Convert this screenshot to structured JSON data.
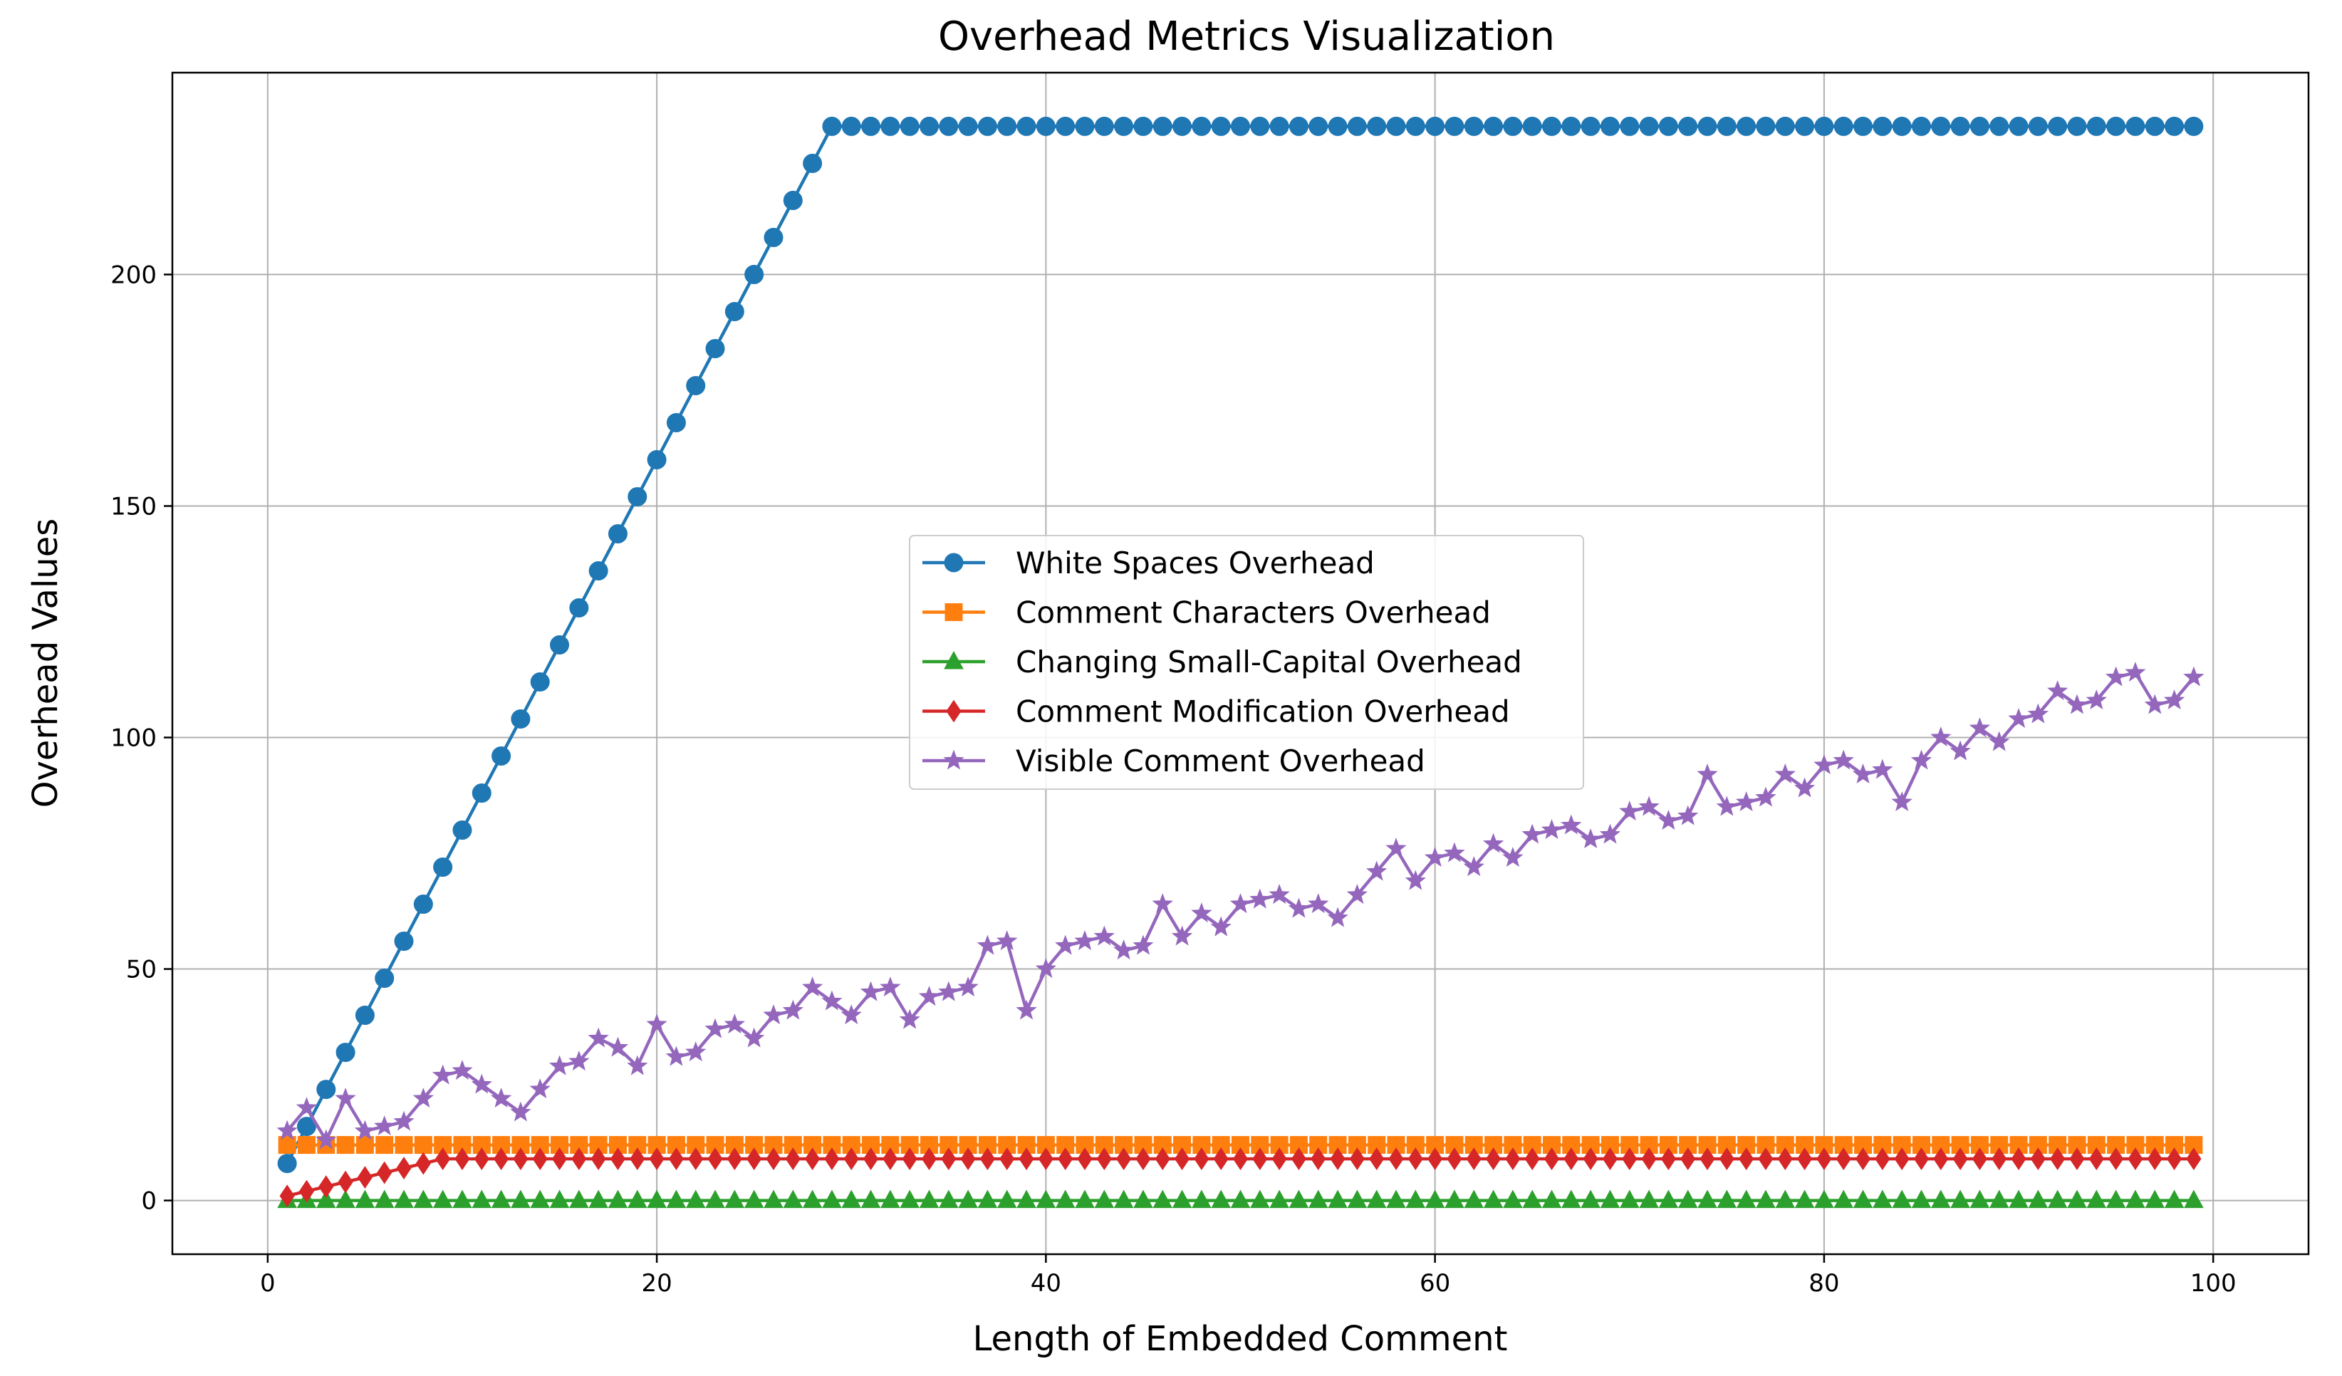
{
  "chart_data": {
    "type": "line",
    "title": "Overhead Metrics Visualization",
    "xlabel": "Length of Embedded Comment",
    "ylabel": "Overhead Values",
    "xlim": [
      -4.9,
      104.9
    ],
    "ylim": [
      -11.6,
      243.6
    ],
    "xticks": [
      0,
      20,
      40,
      60,
      80,
      100
    ],
    "yticks": [
      0,
      50,
      100,
      150,
      200
    ],
    "grid": true,
    "legend_position": "center",
    "x": [
      1,
      2,
      3,
      4,
      5,
      6,
      7,
      8,
      9,
      10,
      11,
      12,
      13,
      14,
      15,
      16,
      17,
      18,
      19,
      20,
      21,
      22,
      23,
      24,
      25,
      26,
      27,
      28,
      29,
      30,
      31,
      32,
      33,
      34,
      35,
      36,
      37,
      38,
      39,
      40,
      41,
      42,
      43,
      44,
      45,
      46,
      47,
      48,
      49,
      50,
      51,
      52,
      53,
      54,
      55,
      56,
      57,
      58,
      59,
      60,
      61,
      62,
      63,
      64,
      65,
      66,
      67,
      68,
      69,
      70,
      71,
      72,
      73,
      74,
      75,
      76,
      77,
      78,
      79,
      80,
      81,
      82,
      83,
      84,
      85,
      86,
      87,
      88,
      89,
      90,
      91,
      92,
      93,
      94,
      95,
      96,
      97,
      98,
      99
    ],
    "series": [
      {
        "name": "White Spaces Overhead",
        "color": "#1f77b4",
        "marker": "circle",
        "values": [
          8,
          16,
          24,
          32,
          40,
          48,
          56,
          64,
          72,
          80,
          88,
          96,
          104,
          112,
          120,
          128,
          136,
          144,
          152,
          160,
          168,
          176,
          184,
          192,
          200,
          208,
          216,
          224,
          232,
          232,
          232,
          232,
          232,
          232,
          232,
          232,
          232,
          232,
          232,
          232,
          232,
          232,
          232,
          232,
          232,
          232,
          232,
          232,
          232,
          232,
          232,
          232,
          232,
          232,
          232,
          232,
          232,
          232,
          232,
          232,
          232,
          232,
          232,
          232,
          232,
          232,
          232,
          232,
          232,
          232,
          232,
          232,
          232,
          232,
          232,
          232,
          232,
          232,
          232,
          232,
          232,
          232,
          232,
          232,
          232,
          232,
          232,
          232,
          232,
          232,
          232,
          232,
          232,
          232,
          232,
          232,
          232,
          232,
          232
        ]
      },
      {
        "name": "Comment Characters Overhead",
        "color": "#ff7f0e",
        "marker": "square",
        "values": [
          12,
          12,
          12,
          12,
          12,
          12,
          12,
          12,
          12,
          12,
          12,
          12,
          12,
          12,
          12,
          12,
          12,
          12,
          12,
          12,
          12,
          12,
          12,
          12,
          12,
          12,
          12,
          12,
          12,
          12,
          12,
          12,
          12,
          12,
          12,
          12,
          12,
          12,
          12,
          12,
          12,
          12,
          12,
          12,
          12,
          12,
          12,
          12,
          12,
          12,
          12,
          12,
          12,
          12,
          12,
          12,
          12,
          12,
          12,
          12,
          12,
          12,
          12,
          12,
          12,
          12,
          12,
          12,
          12,
          12,
          12,
          12,
          12,
          12,
          12,
          12,
          12,
          12,
          12,
          12,
          12,
          12,
          12,
          12,
          12,
          12,
          12,
          12,
          12,
          12,
          12,
          12,
          12,
          12,
          12,
          12,
          12,
          12,
          12
        ]
      },
      {
        "name": "Changing Small-Capital Overhead",
        "color": "#2ca02c",
        "marker": "triangle",
        "values": [
          0,
          0,
          0,
          0,
          0,
          0,
          0,
          0,
          0,
          0,
          0,
          0,
          0,
          0,
          0,
          0,
          0,
          0,
          0,
          0,
          0,
          0,
          0,
          0,
          0,
          0,
          0,
          0,
          0,
          0,
          0,
          0,
          0,
          0,
          0,
          0,
          0,
          0,
          0,
          0,
          0,
          0,
          0,
          0,
          0,
          0,
          0,
          0,
          0,
          0,
          0,
          0,
          0,
          0,
          0,
          0,
          0,
          0,
          0,
          0,
          0,
          0,
          0,
          0,
          0,
          0,
          0,
          0,
          0,
          0,
          0,
          0,
          0,
          0,
          0,
          0,
          0,
          0,
          0,
          0,
          0,
          0,
          0,
          0,
          0,
          0,
          0,
          0,
          0,
          0,
          0,
          0,
          0,
          0,
          0,
          0,
          0,
          0,
          0
        ]
      },
      {
        "name": "Comment Modification Overhead",
        "color": "#d62728",
        "marker": "diamond",
        "values": [
          1,
          2,
          3,
          4,
          5,
          6,
          7,
          8,
          9,
          9,
          9,
          9,
          9,
          9,
          9,
          9,
          9,
          9,
          9,
          9,
          9,
          9,
          9,
          9,
          9,
          9,
          9,
          9,
          9,
          9,
          9,
          9,
          9,
          9,
          9,
          9,
          9,
          9,
          9,
          9,
          9,
          9,
          9,
          9,
          9,
          9,
          9,
          9,
          9,
          9,
          9,
          9,
          9,
          9,
          9,
          9,
          9,
          9,
          9,
          9,
          9,
          9,
          9,
          9,
          9,
          9,
          9,
          9,
          9,
          9,
          9,
          9,
          9,
          9,
          9,
          9,
          9,
          9,
          9,
          9,
          9,
          9,
          9,
          9,
          9,
          9,
          9,
          9,
          9,
          9,
          9,
          9,
          9,
          9,
          9,
          9,
          9,
          9,
          9
        ]
      },
      {
        "name": "Visible Comment Overhead",
        "color": "#9467bd",
        "marker": "star",
        "values": [
          15,
          20,
          13,
          22,
          15,
          16,
          17,
          22,
          27,
          28,
          25,
          22,
          19,
          24,
          29,
          30,
          35,
          33,
          29,
          38,
          31,
          32,
          37,
          38,
          35,
          40,
          41,
          46,
          43,
          40,
          45,
          46,
          39,
          44,
          45,
          46,
          55,
          56,
          41,
          50,
          55,
          56,
          57,
          54,
          55,
          64,
          57,
          62,
          59,
          64,
          65,
          66,
          63,
          64,
          61,
          66,
          71,
          76,
          69,
          74,
          75,
          72,
          77,
          74,
          79,
          80,
          81,
          78,
          79,
          84,
          85,
          82,
          83,
          92,
          85,
          86,
          87,
          92,
          89,
          94,
          95,
          92,
          93,
          86,
          95,
          100,
          97,
          102,
          99,
          104,
          105,
          110,
          107,
          108,
          113,
          114,
          107,
          108,
          113
        ]
      }
    ]
  }
}
